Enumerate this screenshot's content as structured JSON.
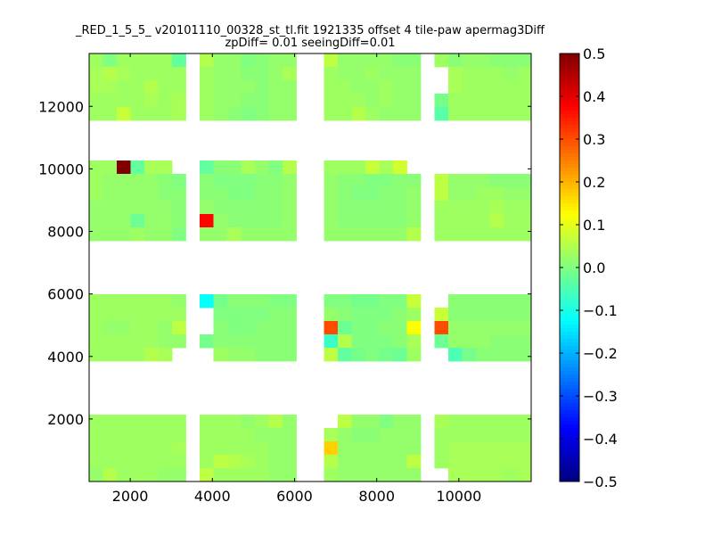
{
  "chart_data": {
    "type": "heatmap",
    "title": [
      "_RED_1_5_5_ v20101110_00328_st_tl.fit 1921335 offset 4 tile-paw apermag3Diff",
      "zpDiff= 0.01 seeingDiff=0.01"
    ],
    "xlabel": "",
    "ylabel": "",
    "xlim": [
      1000,
      11760
    ],
    "ylim": [
      0,
      13690
    ],
    "xticks": [
      2000,
      4000,
      6000,
      8000,
      10000
    ],
    "yticks": [
      2000,
      4000,
      6000,
      8000,
      10000,
      12000
    ],
    "colormap": "jet",
    "clim": [
      -0.5,
      0.5
    ],
    "colorbar_ticks": [
      0.5,
      0.4,
      0.3,
      0.2,
      0.1,
      0.0,
      -0.1,
      -0.2,
      -0.3,
      -0.4,
      -0.5
    ],
    "colorbar_tick_labels": [
      "0.5",
      "0.4",
      "0.3",
      "0.2",
      "0.1",
      "0.0",
      "−0.1",
      "−0.2",
      "−0.3",
      "−0.4",
      "−0.5"
    ],
    "grid_rows_order": "top-to-bottom",
    "z": [
      [
        0.03,
        0.0,
        0.03,
        0.03,
        0.03,
        0.03,
        -0.03,
        null,
        0.05,
        0.02,
        0.02,
        0.0,
        0.01,
        0.02,
        0.02,
        null,
        null,
        0.06,
        0.02,
        0.02,
        0.02,
        0.02,
        0.01,
        0.01,
        null,
        0.03,
        0.01,
        0.02,
        0.02,
        0.01,
        0.01,
        0.01
      ],
      [
        0.04,
        0.05,
        0.04,
        0.03,
        0.03,
        0.03,
        0.03,
        null,
        0.03,
        0.02,
        0.02,
        0.01,
        0.01,
        0.02,
        0.04,
        null,
        null,
        0.03,
        0.02,
        0.02,
        0.03,
        0.02,
        0.02,
        0.02,
        null,
        null,
        0.04,
        0.03,
        0.03,
        0.03,
        0.02,
        0.03
      ],
      [
        0.04,
        0.04,
        0.03,
        0.03,
        0.05,
        0.03,
        0.03,
        null,
        0.03,
        0.02,
        0.02,
        0.02,
        0.01,
        0.02,
        0.02,
        null,
        null,
        0.03,
        0.03,
        0.02,
        0.02,
        0.03,
        0.02,
        0.02,
        null,
        null,
        0.04,
        0.03,
        0.03,
        0.03,
        0.03,
        0.03
      ],
      [
        0.03,
        0.03,
        0.03,
        0.03,
        0.04,
        0.03,
        0.04,
        null,
        0.03,
        0.02,
        0.02,
        0.01,
        0.01,
        0.02,
        0.02,
        null,
        null,
        0.03,
        0.03,
        0.03,
        0.02,
        0.03,
        0.02,
        0.02,
        null,
        -0.01,
        0.03,
        0.03,
        0.03,
        0.03,
        0.03,
        0.03
      ],
      [
        0.03,
        0.03,
        0.07,
        0.03,
        0.03,
        0.03,
        0.04,
        null,
        0.03,
        0.02,
        0.01,
        0.0,
        0.01,
        0.02,
        0.02,
        null,
        null,
        0.03,
        0.03,
        0.05,
        0.03,
        0.02,
        0.02,
        0.02,
        null,
        -0.04,
        0.03,
        0.03,
        0.03,
        0.03,
        0.03,
        0.03
      ],
      [
        null,
        null,
        null,
        null,
        null,
        null,
        null,
        null,
        null,
        null,
        null,
        null,
        null,
        null,
        null,
        null,
        null,
        null,
        null,
        null,
        null,
        null,
        null,
        null,
        null,
        null,
        null,
        null,
        null,
        null,
        null,
        null
      ],
      [
        null,
        null,
        null,
        null,
        null,
        null,
        null,
        null,
        null,
        null,
        null,
        null,
        null,
        null,
        null,
        null,
        null,
        null,
        null,
        null,
        null,
        null,
        null,
        null,
        null,
        null,
        null,
        null,
        null,
        null,
        null,
        null
      ],
      [
        null,
        null,
        null,
        null,
        null,
        null,
        null,
        null,
        null,
        null,
        null,
        null,
        null,
        null,
        null,
        null,
        null,
        null,
        null,
        null,
        null,
        null,
        null,
        null,
        null,
        null,
        null,
        null,
        null,
        null,
        null,
        null
      ],
      [
        0.03,
        0.03,
        0.5,
        -0.03,
        0.04,
        0.04,
        null,
        null,
        -0.03,
        0.01,
        0.01,
        0.04,
        0.02,
        0.0,
        0.05,
        null,
        null,
        0.03,
        0.03,
        0.03,
        0.07,
        0.04,
        0.08,
        null,
        null,
        null,
        null,
        null,
        null,
        null,
        null,
        null
      ],
      [
        0.03,
        0.02,
        0.02,
        0.02,
        0.02,
        0.01,
        0.0,
        null,
        0.01,
        0.0,
        0.0,
        0.0,
        0.01,
        0.01,
        0.02,
        null,
        null,
        0.02,
        0.01,
        0.01,
        0.0,
        0.0,
        0.01,
        0.01,
        null,
        0.06,
        0.02,
        0.02,
        0.02,
        0.01,
        0.01,
        0.01
      ],
      [
        0.03,
        0.02,
        0.02,
        0.02,
        0.02,
        0.01,
        0.01,
        null,
        0.01,
        0.01,
        0.0,
        0.0,
        0.01,
        0.01,
        0.02,
        null,
        null,
        0.02,
        0.01,
        0.0,
        0.0,
        0.01,
        0.01,
        0.02,
        null,
        0.06,
        0.02,
        0.02,
        0.03,
        0.03,
        0.02,
        0.02
      ],
      [
        0.02,
        0.02,
        0.02,
        0.02,
        0.02,
        0.02,
        0.01,
        null,
        0.02,
        0.01,
        0.01,
        0.01,
        0.01,
        0.01,
        0.02,
        null,
        null,
        0.02,
        0.01,
        0.01,
        0.01,
        0.01,
        0.01,
        0.02,
        null,
        0.03,
        0.03,
        0.03,
        0.03,
        0.04,
        0.03,
        0.03
      ],
      [
        0.02,
        0.02,
        0.02,
        -0.02,
        0.02,
        0.02,
        0.01,
        null,
        0.37,
        0.02,
        0.01,
        0.01,
        0.01,
        0.01,
        0.02,
        null,
        null,
        0.02,
        0.01,
        0.01,
        0.01,
        0.01,
        0.01,
        0.02,
        null,
        0.03,
        0.03,
        0.03,
        0.03,
        0.05,
        0.03,
        0.03
      ],
      [
        0.02,
        0.02,
        0.02,
        0.03,
        0.02,
        0.02,
        0.0,
        null,
        0.02,
        0.02,
        0.04,
        0.02,
        0.02,
        0.02,
        0.02,
        null,
        null,
        0.02,
        0.02,
        0.02,
        0.02,
        0.02,
        0.02,
        0.05,
        null,
        0.03,
        0.03,
        0.03,
        0.03,
        0.03,
        0.03,
        0.03
      ],
      [
        null,
        null,
        null,
        null,
        null,
        null,
        null,
        null,
        null,
        null,
        null,
        null,
        null,
        null,
        null,
        null,
        null,
        null,
        null,
        null,
        null,
        null,
        null,
        null,
        null,
        null,
        null,
        null,
        null,
        null,
        null,
        null
      ],
      [
        null,
        null,
        null,
        null,
        null,
        null,
        null,
        null,
        null,
        null,
        null,
        null,
        null,
        null,
        null,
        null,
        null,
        null,
        null,
        null,
        null,
        null,
        null,
        null,
        null,
        null,
        null,
        null,
        null,
        null,
        null,
        null
      ],
      [
        null,
        null,
        null,
        null,
        null,
        null,
        null,
        null,
        null,
        null,
        null,
        null,
        null,
        null,
        null,
        null,
        null,
        null,
        null,
        null,
        null,
        null,
        null,
        null,
        null,
        null,
        null,
        null,
        null,
        null,
        null,
        null
      ],
      [
        null,
        null,
        null,
        null,
        null,
        null,
        null,
        null,
        null,
        null,
        null,
        null,
        null,
        null,
        null,
        null,
        null,
        null,
        null,
        null,
        null,
        null,
        null,
        null,
        null,
        null,
        null,
        null,
        null,
        null,
        null,
        null
      ],
      [
        0.03,
        0.03,
        0.03,
        0.03,
        0.03,
        0.03,
        0.02,
        null,
        -0.12,
        -0.01,
        0.01,
        0.01,
        0.01,
        0.0,
        0.0,
        null,
        null,
        0.0,
        0.0,
        -0.01,
        -0.01,
        0.0,
        0.0,
        0.07,
        null,
        null,
        0.01,
        0.01,
        0.01,
        0.01,
        0.01,
        0.01
      ],
      [
        0.03,
        0.03,
        0.03,
        0.03,
        0.03,
        0.03,
        0.03,
        null,
        null,
        0.0,
        0.0,
        0.0,
        0.0,
        0.01,
        0.01,
        null,
        null,
        0.02,
        0.01,
        0.0,
        0.0,
        0.0,
        0.01,
        0.03,
        null,
        0.07,
        0.01,
        0.01,
        0.01,
        0.01,
        0.01,
        0.01
      ],
      [
        0.03,
        0.02,
        0.02,
        0.03,
        0.03,
        0.02,
        0.06,
        null,
        null,
        0.01,
        0.0,
        0.0,
        0.01,
        0.01,
        0.01,
        null,
        null,
        0.3,
        -0.02,
        0.0,
        0.0,
        0.01,
        0.01,
        0.12,
        null,
        0.3,
        0.02,
        0.02,
        0.02,
        0.02,
        0.02,
        0.02
      ],
      [
        0.03,
        0.03,
        0.03,
        0.03,
        0.03,
        0.02,
        0.02,
        null,
        -0.01,
        0.01,
        0.01,
        0.01,
        0.01,
        0.01,
        0.01,
        null,
        null,
        -0.07,
        0.05,
        0.0,
        0.0,
        0.0,
        0.01,
        0.04,
        null,
        -0.02,
        0.02,
        0.02,
        0.02,
        0.01,
        0.01,
        0.01
      ],
      [
        0.03,
        0.03,
        0.03,
        0.03,
        0.05,
        0.04,
        null,
        null,
        null,
        0.03,
        0.02,
        0.02,
        0.01,
        0.01,
        0.01,
        null,
        null,
        0.06,
        -0.03,
        -0.01,
        0.0,
        -0.01,
        -0.02,
        0.03,
        null,
        null,
        -0.05,
        -0.01,
        0.01,
        0.01,
        0.01,
        0.01
      ],
      [
        null,
        null,
        null,
        null,
        null,
        null,
        null,
        null,
        null,
        null,
        null,
        null,
        null,
        null,
        null,
        null,
        null,
        null,
        null,
        null,
        null,
        null,
        null,
        null,
        null,
        null,
        null,
        null,
        null,
        null,
        null,
        null
      ],
      [
        null,
        null,
        null,
        null,
        null,
        null,
        null,
        null,
        null,
        null,
        null,
        null,
        null,
        null,
        null,
        null,
        null,
        null,
        null,
        null,
        null,
        null,
        null,
        null,
        null,
        null,
        null,
        null,
        null,
        null,
        null,
        null
      ],
      [
        null,
        null,
        null,
        null,
        null,
        null,
        null,
        null,
        null,
        null,
        null,
        null,
        null,
        null,
        null,
        null,
        null,
        null,
        null,
        null,
        null,
        null,
        null,
        null,
        null,
        null,
        null,
        null,
        null,
        null,
        null,
        null
      ],
      [
        null,
        null,
        null,
        null,
        null,
        null,
        null,
        null,
        null,
        null,
        null,
        null,
        null,
        null,
        null,
        null,
        null,
        null,
        null,
        null,
        null,
        null,
        null,
        null,
        null,
        null,
        null,
        null,
        null,
        null,
        null,
        null
      ],
      [
        0.03,
        0.03,
        0.03,
        0.03,
        0.03,
        0.03,
        0.03,
        null,
        0.03,
        0.03,
        0.03,
        0.02,
        0.03,
        0.05,
        0.02,
        null,
        null,
        null,
        0.06,
        0.02,
        0.02,
        0.0,
        0.02,
        0.02,
        null,
        0.04,
        0.03,
        0.03,
        0.03,
        0.03,
        0.03,
        0.03
      ],
      [
        0.03,
        0.03,
        0.03,
        0.03,
        0.03,
        0.03,
        0.03,
        null,
        0.03,
        0.03,
        0.03,
        0.03,
        0.02,
        0.02,
        0.02,
        null,
        null,
        0.04,
        0.02,
        0.01,
        0.01,
        0.02,
        0.02,
        0.02,
        null,
        0.03,
        0.03,
        0.03,
        0.03,
        0.03,
        0.03,
        0.03
      ],
      [
        0.03,
        0.03,
        0.03,
        0.03,
        0.03,
        0.03,
        0.04,
        null,
        0.03,
        0.03,
        0.03,
        0.03,
        0.03,
        0.02,
        0.02,
        null,
        null,
        0.17,
        0.02,
        0.02,
        0.02,
        0.02,
        0.02,
        0.02,
        null,
        0.03,
        0.04,
        0.04,
        0.04,
        0.04,
        0.04,
        0.04
      ],
      [
        0.03,
        0.03,
        0.03,
        0.03,
        0.03,
        0.03,
        0.03,
        null,
        0.03,
        0.06,
        0.05,
        0.04,
        0.03,
        0.02,
        0.02,
        null,
        null,
        0.05,
        0.02,
        0.02,
        0.02,
        0.02,
        0.02,
        0.06,
        null,
        0.03,
        0.04,
        0.04,
        0.04,
        0.04,
        0.04,
        0.04
      ],
      [
        0.02,
        0.05,
        0.03,
        0.03,
        0.03,
        0.02,
        0.02,
        null,
        0.06,
        0.03,
        0.03,
        0.03,
        0.03,
        0.02,
        0.02,
        null,
        null,
        0.03,
        0.02,
        0.02,
        0.02,
        0.02,
        0.02,
        0.02,
        null,
        null,
        0.04,
        0.04,
        0.04,
        0.04,
        0.03,
        0.04
      ]
    ]
  }
}
